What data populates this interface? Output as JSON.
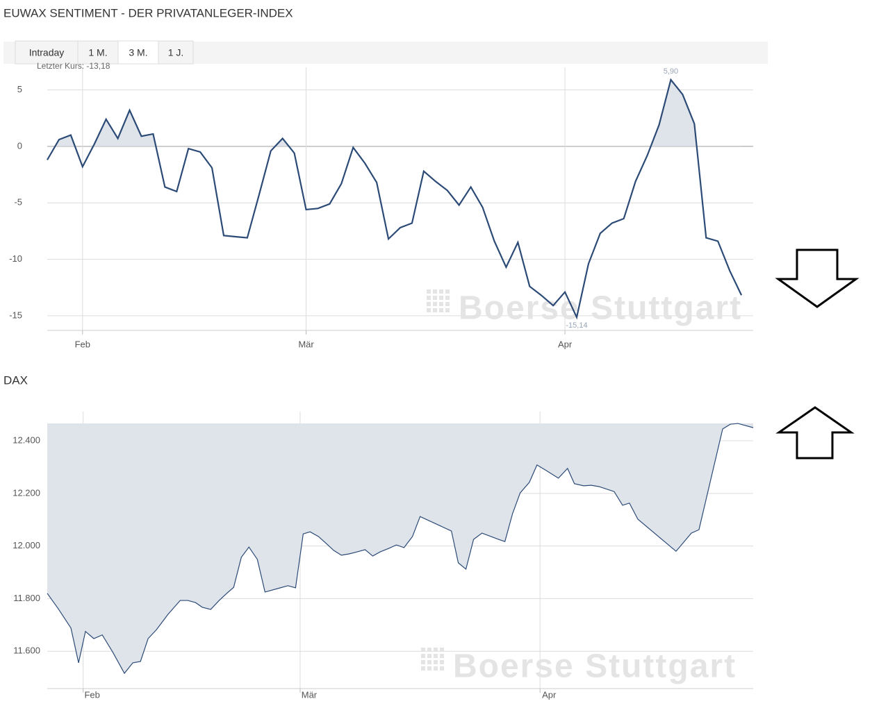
{
  "tabs": {
    "items": [
      "Intraday",
      "1 M.",
      "3 M.",
      "1 J."
    ],
    "active": 2
  },
  "watermark": "Boerse Stuttgart",
  "chart_data": [
    {
      "type": "line",
      "title": "EUWAX SENTIMENT - DER PRIVATANLEGER-INDEX",
      "annotation": "Letzter Kurs: -13,18",
      "values": [
        -1.2,
        0.6,
        1.0,
        -1.8,
        0.2,
        2.4,
        0.7,
        3.2,
        0.9,
        1.1,
        -3.6,
        -4.0,
        -0.2,
        -0.5,
        -1.9,
        -7.9,
        -8.0,
        -8.1,
        -4.3,
        -0.4,
        0.7,
        -0.6,
        -5.6,
        -5.5,
        -5.1,
        -3.3,
        -0.1,
        -1.5,
        -3.2,
        -8.2,
        -7.2,
        -6.8,
        -2.2,
        -3.1,
        -3.9,
        -5.2,
        -3.6,
        -5.4,
        -8.4,
        -10.7,
        -8.5,
        -12.4,
        -13.2,
        -14.1,
        -12.9,
        -15.14,
        -10.4,
        -7.7,
        -6.8,
        -6.4,
        -3.1,
        -0.8,
        1.9,
        5.9,
        4.6,
        2.0,
        -8.1,
        -8.4,
        -11.0,
        -13.18
      ],
      "value_labels": [
        null,
        null,
        null,
        null,
        null,
        null,
        null,
        null,
        null,
        null,
        null,
        null,
        null,
        null,
        null,
        null,
        null,
        null,
        null,
        null,
        null,
        null,
        null,
        null,
        null,
        null,
        null,
        null,
        null,
        null,
        null,
        null,
        null,
        null,
        null,
        null,
        null,
        null,
        null,
        null,
        null,
        null,
        null,
        null,
        null,
        "-15,14",
        null,
        null,
        null,
        null,
        null,
        null,
        null,
        "5,90",
        null,
        null,
        null,
        null,
        null,
        null
      ],
      "color": "#2b4a76",
      "fill_color": "#dfe4eb",
      "area": "above-zero",
      "xlim": [
        0,
        60
      ],
      "xticks": [
        {
          "value": 3,
          "label": "Feb"
        },
        {
          "value": 22,
          "label": "Mär"
        },
        {
          "value": 44,
          "label": "Apr"
        }
      ],
      "ylim": [
        -16.3,
        7
      ],
      "yticks": [
        5,
        0,
        -5,
        -10,
        -15
      ],
      "grid": true
    },
    {
      "type": "line",
      "title": "DAX",
      "x": [
        0,
        1.5,
        3.1,
        4.1,
        5.0,
        6.1,
        7.2,
        8.6,
        10.1,
        11.2,
        12.2,
        13.2,
        14.3,
        15.8,
        17.4,
        18.4,
        19.4,
        20.3,
        21.4,
        22.5,
        23.5,
        24.4,
        25.4,
        26.4,
        27.5,
        28.5,
        30.5,
        31.5,
        32.5,
        33.5,
        34.4,
        35.5,
        36.5,
        37.5,
        38.5,
        39.5,
        40.6,
        41.6,
        42.6,
        43.6,
        44.7,
        45.7,
        46.7,
        47.8,
        48.8,
        52.9,
        53.8,
        54.8,
        55.8,
        56.9,
        59.1,
        59.9,
        60.9,
        61.9,
        63.1,
        64.1,
        65.2,
        66.9,
        68.1,
        69.0,
        70.2,
        71.2,
        72.2,
        74.2,
        75.3,
        76.2,
        77.3,
        82.3,
        84.3,
        85.3,
        88.4,
        89.4,
        90.4,
        92.4
      ],
      "values": [
        11820,
        11759,
        11688,
        11556,
        11675,
        11648,
        11662,
        11595,
        11516,
        11556,
        11561,
        11648,
        11682,
        11740,
        11793,
        11793,
        11785,
        11767,
        11759,
        11793,
        11820,
        11843,
        11957,
        11996,
        11949,
        11825,
        11841,
        11849,
        11841,
        12046,
        12054,
        12036,
        12010,
        11983,
        11965,
        11970,
        11978,
        11986,
        11962,
        11978,
        11991,
        12004,
        11994,
        12036,
        12112,
        12057,
        11936,
        11912,
        12025,
        12049,
        12025,
        12017,
        12123,
        12202,
        12242,
        12308,
        12289,
        12258,
        12295,
        12237,
        12229,
        12231,
        12226,
        12207,
        12155,
        12163,
        12102,
        11980,
        12049,
        12062,
        12445,
        12463,
        12466,
        12450
      ],
      "color": "#2b4a76",
      "fill_color": "#dfe4eb",
      "area": "below-max",
      "xlim": [
        0,
        92.4
      ],
      "xticks": [
        {
          "value": 4.7,
          "label": "Feb"
        },
        {
          "value": 33.1,
          "label": "Mär"
        },
        {
          "value": 64.5,
          "label": "Apr"
        }
      ],
      "ylim": [
        11458,
        12511
      ],
      "yticks": [
        {
          "value": 12400,
          "label": "12.400"
        },
        {
          "value": 12200,
          "label": "12.200"
        },
        {
          "value": 12000,
          "label": "12.000"
        },
        {
          "value": 11800,
          "label": "11.800"
        },
        {
          "value": 11600,
          "label": "11.600"
        }
      ],
      "grid": true
    }
  ]
}
